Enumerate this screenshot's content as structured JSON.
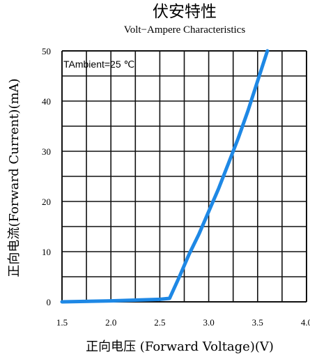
{
  "chart_data": {
    "type": "line",
    "title": "伏安特性",
    "subtitle": "Volt−Ampere Characteristics",
    "xlabel": "正向电压 (Forward Voltage)(V)",
    "ylabel": "正向电流(Forward Current)(mA)",
    "annotation": "TAmbient=25 ℃",
    "xlim": [
      1.5,
      4.0
    ],
    "ylim": [
      0,
      50
    ],
    "x_ticks": [
      {
        "value": 1.5,
        "label": "1.5"
      },
      {
        "value": 2.0,
        "label": "2.0"
      },
      {
        "value": 2.5,
        "label": "2.5"
      },
      {
        "value": 3.0,
        "label": "3.0"
      },
      {
        "value": 3.5,
        "label": "3.5"
      },
      {
        "value": 4.0,
        "label": "4.0"
      }
    ],
    "y_ticks": [
      {
        "value": 0,
        "label": "0"
      },
      {
        "value": 10,
        "label": "10"
      },
      {
        "value": 20,
        "label": "20"
      },
      {
        "value": 30,
        "label": "30"
      },
      {
        "value": 40,
        "label": "40"
      },
      {
        "value": 50,
        "label": "50"
      }
    ],
    "grid": true,
    "line_color": "#1e88e5",
    "series": [
      {
        "x": [
          1.5,
          2.0,
          2.5,
          2.6,
          2.7,
          2.8,
          2.9,
          3.0,
          3.1,
          3.2,
          3.3,
          3.4,
          3.5,
          3.6
        ],
        "y": [
          0.0,
          0.2,
          0.5,
          0.7,
          5.0,
          9.5,
          13.5,
          18.0,
          22.5,
          27.5,
          32.5,
          38.0,
          44.0,
          50.0
        ]
      }
    ]
  }
}
